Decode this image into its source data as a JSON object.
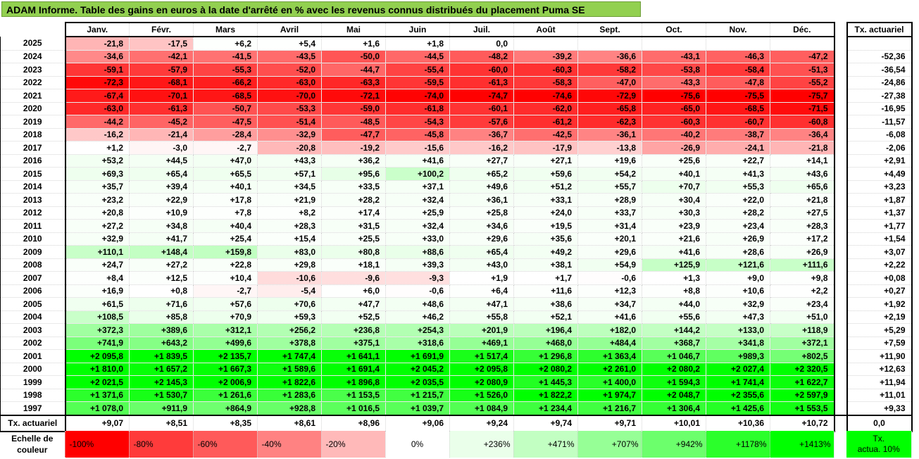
{
  "title": "ADAM Informe. Table des gains en euros à la date d'arrêté en % avec les revenus connus distribués du placement Puma SE",
  "months": [
    "Janv.",
    "Févr.",
    "Mars",
    "Avril",
    "Mai",
    "Juin",
    "Juil.",
    "Août",
    "Sept.",
    "Oct.",
    "Nov.",
    "Déc."
  ],
  "rate_header": "Tx. actuariel",
  "rows": [
    {
      "year": "2025",
      "values": [
        "-21,8",
        "-17,5",
        "+6,2",
        "+5,4",
        "+1,6",
        "+1,8",
        "0,0",
        "",
        "",
        "",
        "",
        ""
      ],
      "rate": ""
    },
    {
      "year": "2024",
      "values": [
        "-34,6",
        "-42,1",
        "-41,5",
        "-43,5",
        "-50,0",
        "-44,5",
        "-48,2",
        "-39,2",
        "-36,6",
        "-43,1",
        "-46,3",
        "-47,2"
      ],
      "rate": "-52,36"
    },
    {
      "year": "2023",
      "values": [
        "-59,1",
        "-57,9",
        "-55,3",
        "-52,0",
        "-44,7",
        "-55,4",
        "-60,0",
        "-60,3",
        "-58,2",
        "-53,8",
        "-58,4",
        "-51,3"
      ],
      "rate": "-36,54"
    },
    {
      "year": "2022",
      "values": [
        "-72,3",
        "-68,1",
        "-66,2",
        "-63,0",
        "-63,3",
        "-59,5",
        "-61,3",
        "-58,3",
        "-47,0",
        "-43,3",
        "-47,8",
        "-55,2"
      ],
      "rate": "-24,86"
    },
    {
      "year": "2021",
      "values": [
        "-67,4",
        "-70,1",
        "-68,5",
        "-70,0",
        "-72,1",
        "-74,0",
        "-74,7",
        "-74,6",
        "-72,9",
        "-75,6",
        "-75,5",
        "-75,7"
      ],
      "rate": "-27,38"
    },
    {
      "year": "2020",
      "values": [
        "-63,0",
        "-61,3",
        "-50,7",
        "-53,3",
        "-59,0",
        "-61,8",
        "-60,1",
        "-62,0",
        "-65,8",
        "-65,0",
        "-68,5",
        "-71,5"
      ],
      "rate": "-16,95"
    },
    {
      "year": "2019",
      "values": [
        "-44,2",
        "-45,2",
        "-47,5",
        "-51,4",
        "-48,5",
        "-54,3",
        "-57,6",
        "-61,2",
        "-62,3",
        "-60,3",
        "-60,7",
        "-60,8"
      ],
      "rate": "-11,57"
    },
    {
      "year": "2018",
      "values": [
        "-16,2",
        "-21,4",
        "-28,4",
        "-32,9",
        "-47,7",
        "-45,8",
        "-36,7",
        "-42,5",
        "-36,1",
        "-40,2",
        "-38,7",
        "-36,4"
      ],
      "rate": "-6,08"
    },
    {
      "year": "2017",
      "values": [
        "+1,2",
        "-3,0",
        "-2,7",
        "-20,8",
        "-19,2",
        "-15,6",
        "-16,2",
        "-17,9",
        "-13,8",
        "-26,9",
        "-24,1",
        "-21,8"
      ],
      "rate": "-2,06"
    },
    {
      "year": "2016",
      "values": [
        "+53,2",
        "+44,5",
        "+47,0",
        "+43,3",
        "+36,2",
        "+41,6",
        "+27,7",
        "+27,1",
        "+19,6",
        "+25,6",
        "+22,7",
        "+14,1"
      ],
      "rate": "+2,91"
    },
    {
      "year": "2015",
      "values": [
        "+69,3",
        "+65,4",
        "+65,5",
        "+57,1",
        "+95,6",
        "+100,2",
        "+65,2",
        "+59,6",
        "+54,2",
        "+40,1",
        "+41,3",
        "+43,6"
      ],
      "rate": "+4,49"
    },
    {
      "year": "2014",
      "values": [
        "+35,7",
        "+39,4",
        "+40,1",
        "+34,5",
        "+33,5",
        "+37,1",
        "+49,6",
        "+51,2",
        "+55,7",
        "+70,7",
        "+55,3",
        "+65,6"
      ],
      "rate": "+3,23"
    },
    {
      "year": "2013",
      "values": [
        "+23,2",
        "+22,9",
        "+17,8",
        "+21,9",
        "+28,2",
        "+32,4",
        "+36,1",
        "+33,1",
        "+28,9",
        "+30,4",
        "+22,0",
        "+21,8"
      ],
      "rate": "+1,87"
    },
    {
      "year": "2012",
      "values": [
        "+20,8",
        "+10,9",
        "+7,8",
        "+8,2",
        "+17,4",
        "+25,9",
        "+25,8",
        "+24,0",
        "+33,7",
        "+30,3",
        "+28,2",
        "+27,5"
      ],
      "rate": "+1,37"
    },
    {
      "year": "2011",
      "values": [
        "+27,2",
        "+34,8",
        "+40,4",
        "+28,3",
        "+31,5",
        "+32,4",
        "+34,6",
        "+19,5",
        "+31,4",
        "+23,9",
        "+23,4",
        "+28,3"
      ],
      "rate": "+1,77"
    },
    {
      "year": "2010",
      "values": [
        "+32,9",
        "+41,7",
        "+25,4",
        "+15,4",
        "+25,5",
        "+33,0",
        "+29,6",
        "+35,6",
        "+20,1",
        "+21,6",
        "+26,9",
        "+17,2"
      ],
      "rate": "+1,54"
    },
    {
      "year": "2009",
      "values": [
        "+110,1",
        "+148,4",
        "+159,8",
        "+83,0",
        "+80,8",
        "+88,6",
        "+65,4",
        "+49,2",
        "+29,6",
        "+41,6",
        "+28,6",
        "+26,9"
      ],
      "rate": "+3,07"
    },
    {
      "year": "2008",
      "values": [
        "+24,7",
        "+27,2",
        "+22,8",
        "+29,8",
        "+18,1",
        "+39,3",
        "+43,0",
        "+38,1",
        "+54,9",
        "+125,9",
        "+121,6",
        "+111,6"
      ],
      "rate": "+2,22"
    },
    {
      "year": "2007",
      "values": [
        "+8,4",
        "+12,5",
        "+10,4",
        "-10,6",
        "-9,6",
        "-9,3",
        "+1,9",
        "+1,7",
        "-0,6",
        "+1,3",
        "+9,0",
        "+9,8"
      ],
      "rate": "+0,08"
    },
    {
      "year": "2006",
      "values": [
        "+16,9",
        "+0,8",
        "-2,7",
        "-5,4",
        "+6,0",
        "-0,6",
        "+6,4",
        "+11,6",
        "+12,3",
        "+8,8",
        "+10,6",
        "+2,2"
      ],
      "rate": "+0,27"
    },
    {
      "year": "2005",
      "values": [
        "+61,5",
        "+71,6",
        "+57,6",
        "+70,6",
        "+47,7",
        "+48,6",
        "+47,1",
        "+38,6",
        "+34,7",
        "+44,0",
        "+32,9",
        "+23,4"
      ],
      "rate": "+1,92"
    },
    {
      "year": "2004",
      "values": [
        "+108,5",
        "+85,8",
        "+70,9",
        "+59,3",
        "+52,5",
        "+46,2",
        "+55,8",
        "+52,1",
        "+41,6",
        "+55,6",
        "+47,3",
        "+51,0"
      ],
      "rate": "+2,19"
    },
    {
      "year": "2003",
      "values": [
        "+372,3",
        "+389,6",
        "+312,1",
        "+256,2",
        "+236,8",
        "+254,3",
        "+201,9",
        "+196,4",
        "+182,0",
        "+144,2",
        "+133,0",
        "+118,9"
      ],
      "rate": "+5,29"
    },
    {
      "year": "2002",
      "values": [
        "+741,9",
        "+643,2",
        "+499,6",
        "+378,8",
        "+375,1",
        "+318,6",
        "+469,1",
        "+468,0",
        "+484,4",
        "+368,7",
        "+341,8",
        "+372,1"
      ],
      "rate": "+7,59"
    },
    {
      "year": "2001",
      "values": [
        "+2 095,8",
        "+1 839,5",
        "+2 135,7",
        "+1 747,4",
        "+1 641,1",
        "+1 691,9",
        "+1 517,4",
        "+1 296,8",
        "+1 363,4",
        "+1 046,7",
        "+989,3",
        "+802,5"
      ],
      "rate": "+11,90"
    },
    {
      "year": "2000",
      "values": [
        "+1 810,0",
        "+1 657,2",
        "+1 667,3",
        "+1 589,6",
        "+1 691,4",
        "+2 045,2",
        "+2 095,8",
        "+2 080,2",
        "+2 261,0",
        "+2 080,2",
        "+2 027,4",
        "+2 320,5"
      ],
      "rate": "+12,63"
    },
    {
      "year": "1999",
      "values": [
        "+2 021,5",
        "+2 145,3",
        "+2 006,9",
        "+1 822,6",
        "+1 896,8",
        "+2 035,5",
        "+2 080,9",
        "+1 445,3",
        "+1 400,0",
        "+1 594,3",
        "+1 741,4",
        "+1 622,7"
      ],
      "rate": "+11,94"
    },
    {
      "year": "1998",
      "values": [
        "+1 371,6",
        "+1 530,7",
        "+1 261,6",
        "+1 283,6",
        "+1 153,5",
        "+1 215,7",
        "+1 526,0",
        "+1 822,2",
        "+1 974,7",
        "+2 048,7",
        "+2 355,6",
        "+2 597,9"
      ],
      "rate": "+11,01"
    },
    {
      "year": "1997",
      "values": [
        "+1 078,0",
        "+911,9",
        "+864,9",
        "+928,8",
        "+1 016,5",
        "+1 039,7",
        "+1 084,9",
        "+1 234,4",
        "+1 216,7",
        "+1 306,4",
        "+1 425,6",
        "+1 553,5"
      ],
      "rate": "+9,33"
    }
  ],
  "footer": {
    "label": "Tx. actuariel",
    "values": [
      "+9,07",
      "+8,51",
      "+8,35",
      "+8,61",
      "+8,96",
      "+9,06",
      "+9,24",
      "+9,74",
      "+9,71",
      "+10,01",
      "+10,36",
      "+10,72"
    ],
    "rate": "0,0"
  },
  "scale": {
    "label_line1": "Echelle de",
    "label_line2": "couleur",
    "swatches": [
      "-100%",
      "-80%",
      "-60%",
      "-40%",
      "-20%",
      "0%",
      "+236%",
      "+471%",
      "+707%",
      "+942%",
      "+1178%",
      "+1413%"
    ],
    "colors": [
      "#ff0000",
      "#ff3b3b",
      "#ff5a5a",
      "#ff8282",
      "#ffb9b9",
      "#ffffff",
      "#eaffea",
      "#c2ffc2",
      "#96ff96",
      "#6cff6c",
      "#2bff2b",
      "#00ff00"
    ],
    "tx_line1": "Tx.",
    "tx_line2": "actua. 10%",
    "tx_color": "#00ff00"
  },
  "colors": {
    "title_bg": "#92d050",
    "negative_max": "#ff0000",
    "positive_max": "#00ff00"
  }
}
